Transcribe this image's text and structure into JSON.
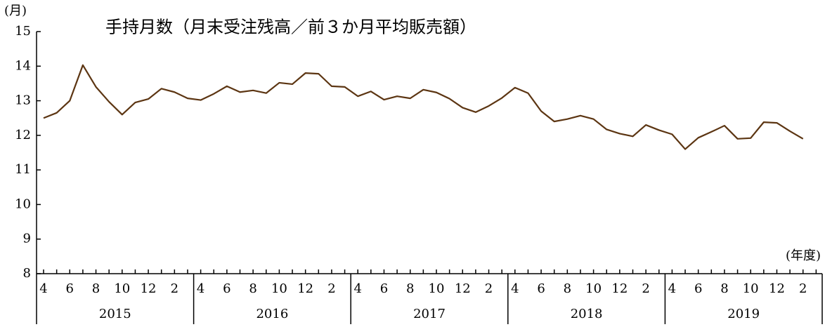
{
  "chart_data": {
    "type": "line",
    "title": "手持月数（月末受注残高／前３か月平均販売額）",
    "y_label": "(月)",
    "x_label": "(年度)",
    "categories": [
      "4",
      null,
      "6",
      null,
      "8",
      null,
      "10",
      null,
      "12",
      null,
      "2",
      null,
      "4",
      null,
      "6",
      null,
      "8",
      null,
      "10",
      null,
      "12",
      null,
      "2",
      null,
      "4",
      null,
      "6",
      null,
      "8",
      null,
      "10",
      null,
      "12",
      null,
      "2",
      null,
      "4",
      null,
      "6",
      null,
      "8",
      null,
      "10",
      null,
      "12",
      null,
      "2",
      null,
      "4",
      null,
      "6",
      null,
      "8",
      null,
      "10",
      null,
      "12",
      null,
      "2",
      null
    ],
    "year_groups": [
      "2015",
      "2016",
      "2017",
      "2018",
      "2019"
    ],
    "series": [
      {
        "color": "#5c3512",
        "values": [
          12.5,
          12.65,
          13.0,
          14.03,
          13.4,
          12.97,
          12.6,
          12.95,
          13.05,
          13.35,
          13.25,
          13.07,
          13.02,
          13.2,
          13.42,
          13.25,
          13.3,
          13.22,
          13.52,
          13.48,
          13.8,
          13.78,
          13.42,
          13.4,
          13.13,
          13.27,
          13.03,
          13.13,
          13.07,
          13.32,
          13.24,
          13.06,
          12.8,
          12.67,
          12.85,
          13.08,
          13.38,
          13.22,
          12.7,
          12.4,
          12.47,
          12.57,
          12.47,
          12.17,
          12.05,
          11.97,
          12.3,
          12.15,
          12.03,
          11.6,
          11.93,
          12.1,
          12.28,
          11.9,
          11.92,
          12.38,
          12.36,
          12.12,
          11.9,
          null
        ]
      }
    ],
    "ylim": [
      8,
      15
    ],
    "yticks": [
      8,
      9,
      10,
      11,
      12,
      13,
      14,
      15
    ],
    "grid": false
  }
}
